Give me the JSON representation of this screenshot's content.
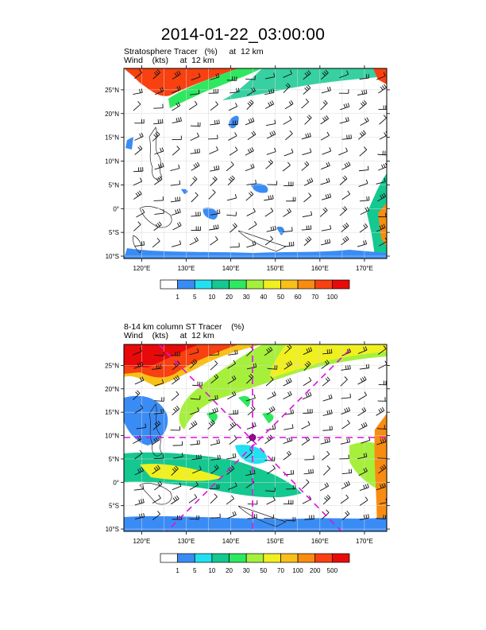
{
  "title": "2014-01-22_03:00:00",
  "panels": [
    {
      "title_line1": "Stratosphere Tracer   (%)     at  12 km",
      "title_line2": "Wind    (kts)     at  12 km",
      "colorbar": {
        "labels": [
          "1",
          "5",
          "10",
          "20",
          "30",
          "40",
          "50",
          "60",
          "70",
          "100"
        ],
        "colors": [
          "#ffffff",
          "#3a8cf5",
          "#22e0f0",
          "#14c890",
          "#2ee860",
          "#a6f03c",
          "#f0f020",
          "#f8c018",
          "#f88c10",
          "#f84010",
          "#e80a0a"
        ]
      }
    },
    {
      "title_line1": "8-14 km column ST Tracer    (%)",
      "title_line2": "Wind    (kts)     at  12 km",
      "colorbar": {
        "labels": [
          "1",
          "5",
          "10",
          "20",
          "30",
          "50",
          "70",
          "100",
          "200",
          "500"
        ],
        "colors": [
          "#ffffff",
          "#3a8cf5",
          "#22e0f0",
          "#14c890",
          "#2ee860",
          "#a6f03c",
          "#f0f020",
          "#f8c018",
          "#f88c10",
          "#f84010",
          "#e80a0a"
        ]
      }
    }
  ],
  "map": {
    "lat_labels": [
      "25°N",
      "20°N",
      "15°N",
      "10°N",
      "5°N",
      "0°",
      "5°S",
      "10°S"
    ],
    "lon_labels": [
      "120°E",
      "130°E",
      "140°E",
      "150°E",
      "160°E",
      "170°E"
    ],
    "lat_values": [
      25,
      20,
      15,
      10,
      5,
      0,
      -5,
      -10
    ],
    "lon_values": [
      120,
      130,
      140,
      150,
      160,
      170
    ],
    "lon_range": [
      116,
      175
    ],
    "lat_range": [
      -10.5,
      29.5
    ]
  }
}
